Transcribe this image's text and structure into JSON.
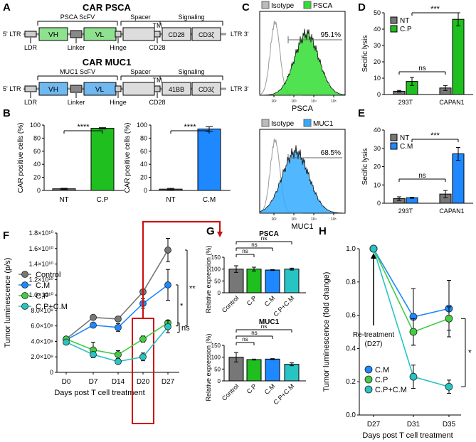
{
  "panels": {
    "A": {
      "letter": "A",
      "psca": {
        "title": "CAR PSCA",
        "ltr5": "5' LTR",
        "ltr3": "LTR 3'",
        "scfv": "PSCA ScFV",
        "spacer": "Spacer",
        "tm": "TM",
        "signaling": "Signaling",
        "vh": "VH",
        "vl": "VL",
        "sig1": "CD28",
        "sig2": "CD3ζ",
        "ldr": "LDR",
        "linker": "Linker",
        "hinge": "Hinge",
        "cd28": "CD28",
        "color": "#8fe08f"
      },
      "muc1": {
        "title": "CAR MUC1",
        "ltr5": "5' LTR",
        "ltr3": "LTR 3'",
        "scfv": "MUC1 ScFV",
        "spacer": "Spacer",
        "tm": "TM",
        "signaling": "Signaling",
        "vh": "VH",
        "vl": "VL",
        "sig1": "41BB",
        "sig2": "CD3ζ",
        "ldr": "LDR",
        "linker": "Linker",
        "hinge": "Hinge",
        "cd28": "CD28",
        "color": "#6fb8f0"
      }
    },
    "B": {
      "letter": "B"
    },
    "C": {
      "letter": "C",
      "top": {
        "legend": [
          "Isotype",
          "PSCA"
        ],
        "xlabel": "PSCA",
        "percent": "95.1%",
        "color": "#33dd33"
      },
      "bottom": {
        "legend": [
          "Isotype",
          "MUC1"
        ],
        "xlabel": "MUC1",
        "percent": "68.5%",
        "color": "#33aaff"
      },
      "ticks": [
        "10²",
        "10³",
        "10⁴",
        "10⁵"
      ]
    },
    "D": {
      "letter": "D"
    },
    "E": {
      "letter": "E"
    },
    "F": {
      "letter": "F"
    },
    "G": {
      "letter": "G"
    },
    "H": {
      "letter": "H",
      "annotation": [
        "Re-treatment",
        "(D27)"
      ]
    }
  },
  "colors": {
    "green": "#1fbf1f",
    "blue": "#1e88ff",
    "gray": "#777777",
    "cyan": "#28c4c4",
    "ltgreen": "#44cc44",
    "red": "#cc1111"
  },
  "chart_data": [
    {
      "id": "B1",
      "type": "bar",
      "categories": [
        "NT",
        "C.P"
      ],
      "values": [
        2.5,
        95
      ],
      "errors": [
        0.8,
        1.0
      ],
      "ylabel": "CAR positive cells (%)",
      "ylim": [
        0,
        100
      ],
      "yticks": [
        0,
        20,
        40,
        60,
        80,
        100
      ],
      "colors": [
        "#777777",
        "#1fbf1f"
      ],
      "significance": "****"
    },
    {
      "id": "B2",
      "type": "bar",
      "categories": [
        "NT",
        "C.M"
      ],
      "values": [
        2,
        94
      ],
      "errors": [
        1.2,
        3.5
      ],
      "ylabel": "CAR positive cells (%)",
      "ylim": [
        0,
        100
      ],
      "yticks": [
        0,
        20,
        40,
        60,
        80,
        100
      ],
      "colors": [
        "#777777",
        "#1e88ff"
      ],
      "significance": "****"
    },
    {
      "id": "D",
      "type": "bar",
      "categories": [
        "293T",
        "CAPAN1"
      ],
      "series": [
        {
          "name": "NT",
          "values": [
            2,
            4
          ],
          "errors": [
            0.5,
            1.5
          ],
          "color": "#777777"
        },
        {
          "name": "C.P",
          "values": [
            8,
            46
          ],
          "errors": [
            2.5,
            4.0
          ],
          "color": "#1fbf1f"
        }
      ],
      "ylabel": "Secific lysis",
      "ylim": [
        0,
        50
      ],
      "yticks": [
        0,
        10,
        20,
        30,
        40,
        50
      ],
      "significance": [
        "ns",
        "***"
      ]
    },
    {
      "id": "E",
      "type": "bar",
      "categories": [
        "293T",
        "CAPAN1"
      ],
      "series": [
        {
          "name": "NT",
          "values": [
            2.5,
            5
          ],
          "errors": [
            1.0,
            2.0
          ],
          "color": "#777777"
        },
        {
          "name": "C.M",
          "values": [
            3,
            27
          ],
          "errors": [
            0.3,
            3.5
          ],
          "color": "#1e88ff"
        }
      ],
      "ylabel": "Secific lysis",
      "ylim": [
        0,
        40
      ],
      "yticks": [
        0,
        10,
        20,
        30,
        40
      ],
      "significance": [
        "ns",
        "***"
      ]
    },
    {
      "id": "F",
      "type": "line",
      "x": [
        "D0",
        "D7",
        "D14",
        "D20",
        "D27"
      ],
      "ylabel": "Tumor luminescence (p/s)",
      "xlabel": "Days post T cell treatment",
      "ylim": [
        0,
        18000000000.0
      ],
      "yticks": [
        "0",
        "2.0×10⁹",
        "4.0×10⁹",
        "6.0×10⁹",
        "8.0×10⁹",
        "1.0×10¹⁰",
        "1.2×10¹⁰",
        "1.4×10¹⁰",
        "1.6×10¹⁰",
        "1.8×10¹⁰"
      ],
      "series": [
        {
          "name": "Control",
          "values": [
            4300000000.0,
            7100000000.0,
            6900000000.0,
            10400000000.0,
            15800000000.0
          ],
          "errors": [
            200000000.0,
            100000000.0,
            100000000.0,
            100000000.0,
            1500000000.0
          ],
          "color": "#777777"
        },
        {
          "name": "C.M",
          "values": [
            4200000000.0,
            6100000000.0,
            5800000000.0,
            8900000000.0,
            11300000000.0
          ],
          "errors": [
            200000000.0,
            300000000.0,
            500000000.0,
            600000000.0,
            2000000000.0
          ],
          "color": "#1e88ff"
        },
        {
          "name": "C.P",
          "values": [
            4300000000.0,
            2900000000.0,
            2300000000.0,
            4300000000.0,
            6400000000.0
          ],
          "errors": [
            300000000.0,
            1000000000.0,
            500000000.0,
            400000000.0,
            300000000.0
          ],
          "color": "#44cc44"
        },
        {
          "name": "C.P+C.M",
          "values": [
            3900000000.0,
            2300000000.0,
            1400000000.0,
            2000000000.0,
            5900000000.0
          ],
          "errors": [
            300000000.0,
            300000000.0,
            200000000.0,
            500000000.0,
            800000000.0
          ],
          "color": "#28c4c4"
        }
      ],
      "significance": [
        "**",
        "*",
        "ns"
      ],
      "highlight": "D20"
    },
    {
      "id": "G1",
      "type": "bar",
      "title": "PSCA",
      "categories": [
        "Control",
        "C.P",
        "C.M",
        "C.P+C.M"
      ],
      "values": [
        100,
        100,
        96,
        100
      ],
      "errors": [
        14,
        8,
        2,
        4
      ],
      "colors": [
        "#777777",
        "#1fbf1f",
        "#1e88ff",
        "#28c4c4"
      ],
      "ylabel": "Relative expression (%)",
      "ylim": [
        0,
        150
      ],
      "yticks": [
        0,
        50,
        100,
        150
      ],
      "significance": [
        "ns",
        "ns",
        "ns"
      ]
    },
    {
      "id": "G2",
      "type": "bar",
      "title": "MUC1",
      "categories": [
        "Control",
        "C.P",
        "C.M",
        "C.P+C.M"
      ],
      "values": [
        100,
        90,
        92,
        70
      ],
      "errors": [
        20,
        2,
        2,
        6
      ],
      "colors": [
        "#777777",
        "#1fbf1f",
        "#1e88ff",
        "#28c4c4"
      ],
      "ylabel": "Relative expression (%)",
      "ylim": [
        0,
        150
      ],
      "yticks": [
        0,
        50,
        100,
        150
      ],
      "significance": [
        "ns",
        "ns",
        "ns"
      ]
    },
    {
      "id": "H",
      "type": "line",
      "x": [
        "D27",
        "D31",
        "D35"
      ],
      "ylabel": "Tumor luminescence (fold change)",
      "xlabel": "Days post T cell treatment",
      "ylim": [
        0,
        1.0
      ],
      "yticks": [
        "0.0",
        "0.2",
        "0.4",
        "0.6",
        "0.8",
        "1.0"
      ],
      "series": [
        {
          "name": "C.M",
          "values": [
            1.0,
            0.59,
            0.64
          ],
          "errors": [
            0,
            0.17,
            0.17
          ],
          "color": "#1e88ff"
        },
        {
          "name": "C.P",
          "values": [
            1.0,
            0.5,
            0.58
          ],
          "errors": [
            0,
            0.08,
            0.07
          ],
          "color": "#44cc44"
        },
        {
          "name": "C.P+C.M",
          "values": [
            1.0,
            0.23,
            0.17
          ],
          "errors": [
            0,
            0.07,
            0.04
          ],
          "color": "#28c4c4"
        }
      ],
      "significance": [
        "*"
      ]
    }
  ]
}
